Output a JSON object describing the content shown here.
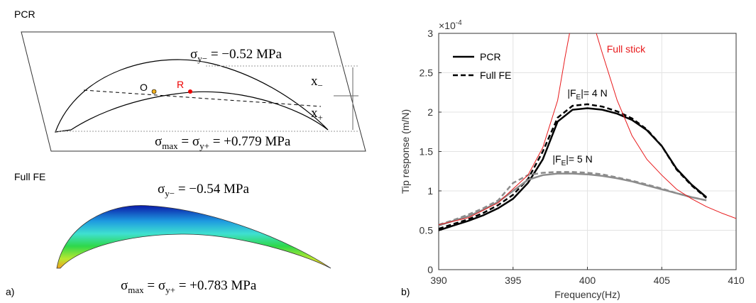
{
  "panel_a": {
    "label": "a)",
    "pcr": {
      "title": "PCR",
      "top_stress": {
        "symbol": "σ",
        "sub": "y−",
        "rest": " = −0.52 MPa"
      },
      "point_o": "O",
      "point_r": "R",
      "dist_minus": {
        "symbol": "x",
        "sub": "−"
      },
      "dist_plus": {
        "symbol": "x",
        "sub": "+"
      },
      "bottom_stress": {
        "symbol": "σ",
        "sub": "max",
        "mid": " =  σ",
        "sub2": "y+",
        "rest": " = +0.779 MPa"
      }
    },
    "full_fe": {
      "title": "Full  FE",
      "top_stress": {
        "symbol": "σ",
        "sub": "y−",
        "rest": " = −0.54 MPa"
      },
      "bottom_stress": {
        "symbol": "σ",
        "sub": "max",
        "mid": " = σ",
        "sub2": "y+",
        "rest": " = +0.783 MPa"
      }
    }
  },
  "panel_b_label": "b)",
  "chart_data": {
    "type": "line",
    "x_label": "Frequency(Hz)",
    "y_label": "Tip response (m/N)",
    "y_multiplier": {
      "base": "×10",
      "exp": "-4"
    },
    "xlim": [
      390,
      410
    ],
    "xticks": [
      390,
      395,
      400,
      405,
      410
    ],
    "ylim": [
      0,
      3
    ],
    "yticks": [
      0,
      0.5,
      1,
      1.5,
      2,
      2.5,
      3
    ],
    "grid": true,
    "legend_position": "upper left",
    "series": [
      {
        "name": "PCR",
        "color": "#000000",
        "dash": false,
        "x": [
          390,
          391,
          392,
          393,
          394,
          395,
          396,
          397,
          398,
          399,
          400,
          401,
          402,
          403,
          404,
          405,
          406,
          407,
          408
        ],
        "values": [
          0.5,
          0.56,
          0.62,
          0.69,
          0.78,
          0.9,
          1.1,
          1.4,
          1.88,
          2.03,
          2.05,
          2.03,
          1.98,
          1.9,
          1.77,
          1.57,
          1.28,
          1.08,
          0.92
        ]
      },
      {
        "name": "Full FE",
        "color": "#000000",
        "dash": true,
        "x": [
          390,
          391,
          392,
          393,
          394,
          395,
          396,
          397,
          398,
          399,
          400,
          401,
          402,
          403,
          404,
          405,
          406,
          407,
          408
        ],
        "values": [
          0.52,
          0.58,
          0.64,
          0.72,
          0.82,
          0.95,
          1.15,
          1.5,
          1.93,
          2.08,
          2.1,
          2.07,
          2.01,
          1.92,
          1.78,
          1.57,
          1.27,
          1.07,
          0.91
        ]
      },
      {
        "color": "#8c8c8c",
        "dash": false,
        "x": [
          390,
          391,
          392,
          393,
          394,
          395,
          396,
          397,
          398,
          399,
          400,
          401,
          402,
          403,
          404,
          405,
          406,
          407,
          408
        ],
        "values": [
          0.56,
          0.62,
          0.68,
          0.76,
          0.86,
          1.0,
          1.14,
          1.2,
          1.22,
          1.22,
          1.21,
          1.19,
          1.16,
          1.12,
          1.07,
          1.02,
          0.97,
          0.92,
          0.88
        ]
      },
      {
        "color": "#8c8c8c",
        "dash": true,
        "x": [
          390,
          391,
          392,
          393,
          394,
          395,
          396,
          397,
          398,
          399,
          400,
          401,
          402,
          403,
          404,
          405,
          406,
          407,
          408
        ],
        "values": [
          0.57,
          0.63,
          0.7,
          0.78,
          0.88,
          1.1,
          1.2,
          1.23,
          1.24,
          1.24,
          1.23,
          1.21,
          1.17,
          1.13,
          1.08,
          1.03,
          0.97,
          0.92,
          0.88
        ]
      },
      {
        "name": "Full stick",
        "color": "#e8191b",
        "dash": false,
        "x": [
          390,
          392,
          394,
          396,
          397,
          398,
          398.5,
          398.8,
          399.5,
          400.6,
          401,
          402,
          403,
          404,
          405,
          406,
          407,
          408,
          409,
          410
        ],
        "values": [
          0.57,
          0.66,
          0.85,
          1.2,
          1.55,
          2.15,
          2.7,
          3.0,
          null,
          3.0,
          2.75,
          2.15,
          1.7,
          1.4,
          1.2,
          1.02,
          0.9,
          0.8,
          0.72,
          0.65
        ]
      }
    ],
    "annotations": [
      {
        "before": "|F",
        "sub": "E",
        "after": "|= 4 N",
        "x": 400,
        "y": 2.2
      },
      {
        "before": "|F",
        "sub": "E",
        "after": "|= 5 N",
        "x": 399,
        "y": 1.36
      }
    ]
  }
}
